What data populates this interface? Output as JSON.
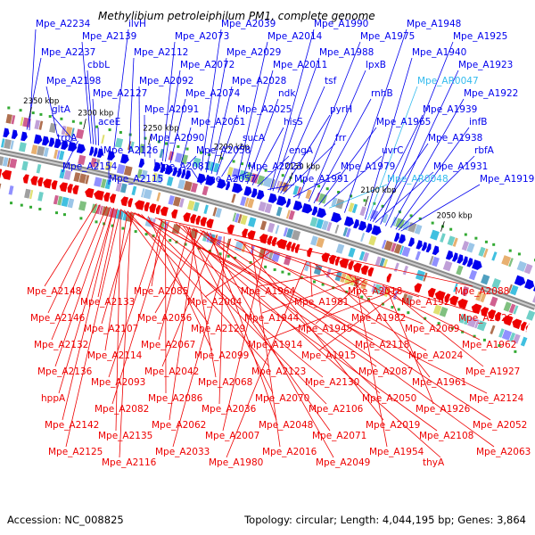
{
  "title": "Methylibium petroleiphilum PM1, complete genome",
  "footer": {
    "accession": "Accession: NC_008825",
    "summary": "Topology: circular; Length: 4,044,195 bp; Genes: 3,864"
  },
  "colors": {
    "forward": "#0000ee",
    "reverse": "#ee0000",
    "rna": "#33bbee",
    "backbone": "#8a8a8a"
  },
  "ticks": [
    "2350 kbp",
    "2300 kbp",
    "2250 kbp",
    "2200 kbp",
    "2150 kbp",
    "2100 kbp",
    "2050 kbp"
  ],
  "top_labels": [
    {
      "text": "Mpe_A2234",
      "t": 0.005
    },
    {
      "text": "Mpe_A2237",
      "t": 0.0
    },
    {
      "text": "Mpe_A2198",
      "t": 0.06
    },
    {
      "text": "gltA",
      "t": 0.09
    },
    {
      "text": "trpA",
      "t": 0.095
    },
    {
      "text": "Mpe_A2154",
      "t": 0.1
    },
    {
      "text": "Mpe_A2139",
      "t": 0.125
    },
    {
      "text": "cbbL",
      "t": 0.13
    },
    {
      "text": "Mpe_A2127",
      "t": 0.135
    },
    {
      "text": "aceE",
      "t": 0.14
    },
    {
      "text": "Mpe_A2126",
      "t": 0.145
    },
    {
      "text": "Mpe_A2115",
      "t": 0.16
    },
    {
      "text": "ilvH",
      "t": 0.17
    },
    {
      "text": "Mpe_A2112",
      "t": 0.2
    },
    {
      "text": "Mpe_A2092",
      "t": 0.22
    },
    {
      "text": "Mpe_A2091",
      "t": 0.23
    },
    {
      "text": "Mpe_A2090",
      "t": 0.24
    },
    {
      "text": "Mpe_A2081",
      "t": 0.25
    },
    {
      "text": "Mpe_A2073",
      "t": 0.265
    },
    {
      "text": "Mpe_A2072",
      "t": 0.27
    },
    {
      "text": "Mpe_A2074",
      "t": 0.28
    },
    {
      "text": "Mpe_A2061",
      "t": 0.3
    },
    {
      "text": "Mpe_A2058",
      "t": 0.31
    },
    {
      "text": "Mpe_A2057",
      "t": 0.32
    },
    {
      "text": "Mpe_A2039",
      "t": 0.34
    },
    {
      "text": "Mpe_A2029",
      "t": 0.35
    },
    {
      "text": "Mpe_A2028",
      "t": 0.36
    },
    {
      "text": "Mpe_A2025",
      "t": 0.37
    },
    {
      "text": "sucA",
      "t": 0.38
    },
    {
      "text": "Mpe_A2023",
      "t": 0.4
    },
    {
      "text": "Mpe_A2014",
      "t": 0.41
    },
    {
      "text": "Mpe_A2011",
      "t": 0.42
    },
    {
      "text": "ndk",
      "t": 0.43
    },
    {
      "text": "hisS",
      "t": 0.44
    },
    {
      "text": "engA",
      "t": 0.45
    },
    {
      "text": "Mpe_A1991",
      "t": 0.47
    },
    {
      "text": "Mpe_A1990",
      "t": 0.475
    },
    {
      "text": "Mpe_A1988",
      "t": 0.48
    },
    {
      "text": "tsf",
      "t": 0.49
    },
    {
      "text": "pyrH",
      "t": 0.495
    },
    {
      "text": "frr",
      "t": 0.5
    },
    {
      "text": "Mpe_A1979",
      "t": 0.52
    },
    {
      "text": "Mpe_A1975",
      "t": 0.53
    },
    {
      "text": "lpxB",
      "t": 0.55
    },
    {
      "text": "rnhB",
      "t": 0.56
    },
    {
      "text": "Mpe_A1965",
      "t": 0.57
    },
    {
      "text": "uvrC",
      "t": 0.58
    },
    {
      "text": "Mpe_AR0048",
      "t": 0.59
    },
    {
      "text": "Mpe_A1948",
      "t": 0.62
    },
    {
      "text": "Mpe_A1940",
      "t": 0.66
    },
    {
      "text": "Mpe_AR0047",
      "t": 0.665
    },
    {
      "text": "Mpe_A1939",
      "t": 0.67
    },
    {
      "text": "Mpe_A1938",
      "t": 0.675
    },
    {
      "text": "Mpe_A1931",
      "t": 0.68
    },
    {
      "text": "Mpe_A1925",
      "t": 0.69
    },
    {
      "text": "Mpe_A1923",
      "t": 0.7
    },
    {
      "text": "Mpe_A1922",
      "t": 0.71
    },
    {
      "text": "infB",
      "t": 0.72
    },
    {
      "text": "rbfA",
      "t": 0.725
    },
    {
      "text": "Mpe_A1919",
      "t": 0.73
    }
  ],
  "bottom_labels": [
    {
      "text": "Mpe_A2148",
      "t": 0.095
    },
    {
      "text": "Mpe_A2146",
      "t": 0.1
    },
    {
      "text": "Mpe_A2132",
      "t": 0.11
    },
    {
      "text": "Mpe_A2136",
      "t": 0.115
    },
    {
      "text": "hppA",
      "t": 0.12
    },
    {
      "text": "Mpe_A2142",
      "t": 0.12
    },
    {
      "text": "Mpe_A2125",
      "t": 0.13
    },
    {
      "text": "Mpe_A2133",
      "t": 0.125
    },
    {
      "text": "Mpe_A2107",
      "t": 0.15
    },
    {
      "text": "Mpe_A2114",
      "t": 0.14
    },
    {
      "text": "Mpe_A2093",
      "t": 0.19
    },
    {
      "text": "Mpe_A2082",
      "t": 0.2
    },
    {
      "text": "Mpe_A2135",
      "t": 0.13
    },
    {
      "text": "Mpe_A2116",
      "t": 0.145
    },
    {
      "text": "Mpe_A2085",
      "t": 0.19
    },
    {
      "text": "Mpe_A2056",
      "t": 0.25
    },
    {
      "text": "Mpe_A2067",
      "t": 0.23
    },
    {
      "text": "Mpe_A2042",
      "t": 0.27
    },
    {
      "text": "Mpe_A2086",
      "t": 0.195
    },
    {
      "text": "Mpe_A2062",
      "t": 0.24
    },
    {
      "text": "Mpe_A2033",
      "t": 0.29
    },
    {
      "text": "Mpe_A2004",
      "t": 0.35
    },
    {
      "text": "Mpe_A2129",
      "t": 0.135
    },
    {
      "text": "Mpe_A2099",
      "t": 0.17
    },
    {
      "text": "Mpe_A2068",
      "t": 0.23
    },
    {
      "text": "Mpe_A2036",
      "t": 0.28
    },
    {
      "text": "Mpe_A2007",
      "t": 0.34
    },
    {
      "text": "Mpe_A1980",
      "t": 0.4
    },
    {
      "text": "Mpe_A1964",
      "t": 0.45
    },
    {
      "text": "Mpe_A1944",
      "t": 0.48
    },
    {
      "text": "Mpe_A1914",
      "t": 0.53
    },
    {
      "text": "Mpe_A2123",
      "t": 0.14
    },
    {
      "text": "Mpe_A2070",
      "t": 0.225
    },
    {
      "text": "Mpe_A2048",
      "t": 0.26
    },
    {
      "text": "Mpe_A2016",
      "t": 0.32
    },
    {
      "text": "Mpe_A1981",
      "t": 0.405
    },
    {
      "text": "Mpe_A1945",
      "t": 0.485
    },
    {
      "text": "Mpe_A1915",
      "t": 0.535
    },
    {
      "text": "Mpe_A2130",
      "t": 0.13
    },
    {
      "text": "Mpe_A2106",
      "t": 0.16
    },
    {
      "text": "Mpe_A2071",
      "t": 0.22
    },
    {
      "text": "Mpe_A2049",
      "t": 0.255
    },
    {
      "text": "Mpe_A2018",
      "t": 0.31
    },
    {
      "text": "Mpe_A1982",
      "t": 0.41
    },
    {
      "text": "Mpe_A2118",
      "t": 0.15
    },
    {
      "text": "Mpe_A2087",
      "t": 0.185
    },
    {
      "text": "Mpe_A2050",
      "t": 0.25
    },
    {
      "text": "Mpe_A2019",
      "t": 0.305
    },
    {
      "text": "Mpe_A1954",
      "t": 0.47
    },
    {
      "text": "Mpe_A1924",
      "t": 0.52
    },
    {
      "text": "Mpe_A2069",
      "t": 0.215
    },
    {
      "text": "Mpe_A2024",
      "t": 0.3
    },
    {
      "text": "Mpe_A1961",
      "t": 0.46
    },
    {
      "text": "Mpe_A1926",
      "t": 0.515
    },
    {
      "text": "Mpe_A2108",
      "t": 0.155
    },
    {
      "text": "thyA",
      "t": 0.21
    },
    {
      "text": "Mpe_A2088",
      "t": 0.18
    },
    {
      "text": "Mpe_A2026",
      "t": 0.295
    },
    {
      "text": "Mpe_A1962",
      "t": 0.455
    },
    {
      "text": "Mpe_A1927",
      "t": 0.51
    },
    {
      "text": "Mpe_A2124",
      "t": 0.145
    },
    {
      "text": "Mpe_A2052",
      "t": 0.245
    },
    {
      "text": "Mpe_A2063",
      "t": 0.235
    }
  ]
}
